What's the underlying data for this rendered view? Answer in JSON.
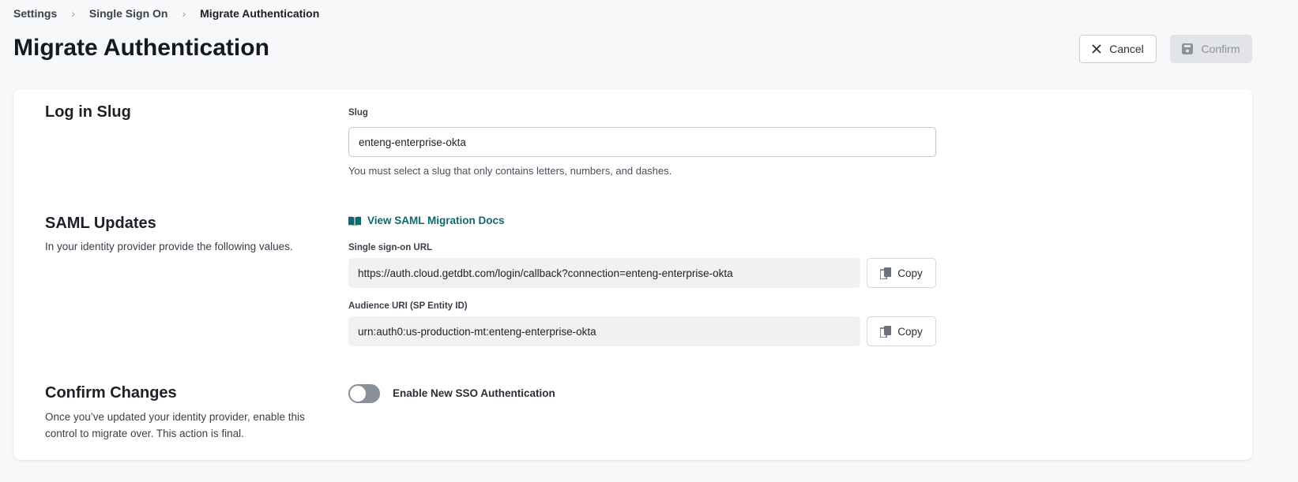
{
  "breadcrumb": [
    "Settings",
    "Single Sign On",
    "Migrate Authentication"
  ],
  "title": "Migrate Authentication",
  "actions": {
    "cancel": "Cancel",
    "confirm": "Confirm"
  },
  "slug_section": {
    "title": "Log in Slug",
    "label": "Slug",
    "value": "enteng-enterprise-okta",
    "help": "You must select a slug that only contains letters, numbers, and dashes."
  },
  "saml_section": {
    "title": "SAML Updates",
    "description": "In your identity provider provide the following values.",
    "docs_link": "View SAML Migration Docs",
    "sso_label": "Single sign-on URL",
    "sso_value": "https://auth.cloud.getdbt.com/login/callback?connection=enteng-enterprise-okta",
    "audience_label": "Audience URI (SP Entity ID)",
    "audience_value": "urn:auth0:us-production-mt:enteng-enterprise-okta",
    "copy": "Copy"
  },
  "confirm_section": {
    "title": "Confirm Changes",
    "description": "Once you’ve updated your identity provider, enable this control to migrate over. This action is final.",
    "toggle_label": "Enable New SSO Authentication",
    "toggle_on": false
  },
  "colors": {
    "link": "#0c6a6d",
    "toggle_off": "#8a909a"
  }
}
